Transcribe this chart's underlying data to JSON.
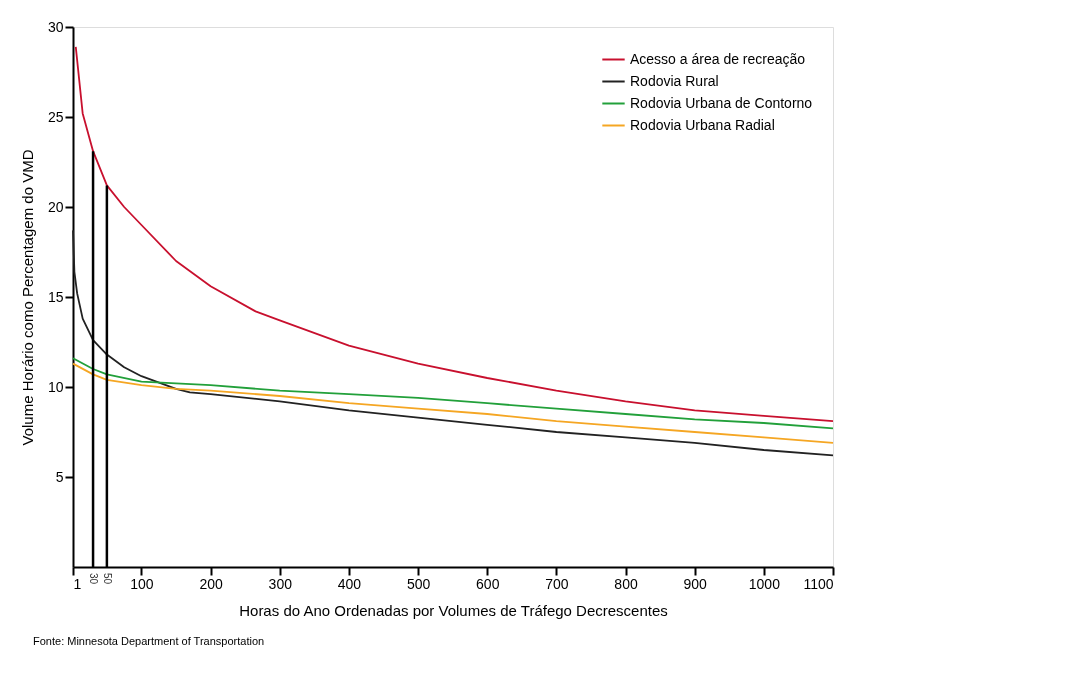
{
  "chart_data": {
    "type": "line",
    "xlabel": "Horas do Ano Ordenadas por Volumes de Tráfego Decrescentes",
    "ylabel": "Volume Horário como Percentagem do VMD",
    "xlim": [
      1,
      1100
    ],
    "xticks": [
      1,
      100,
      200,
      300,
      400,
      500,
      600,
      700,
      800,
      900,
      1000,
      1100
    ],
    "ylim": [
      0,
      30
    ],
    "yticks": [
      5,
      10,
      15,
      20,
      25,
      30
    ],
    "grid": false,
    "legend": "top right",
    "marker": "none",
    "line_style": "solid",
    "series": [
      {
        "name": "Acesso a área de recreação",
        "color": "#c8102e",
        "x": [
          5,
          15,
          30,
          50,
          75,
          100,
          150,
          200,
          265,
          300,
          400,
          500,
          600,
          700,
          800,
          900,
          1000,
          1100
        ],
        "values": [
          28.9,
          25.2,
          23.1,
          21.2,
          20.0,
          19.0,
          17.0,
          15.6,
          14.2,
          13.7,
          12.3,
          11.3,
          10.5,
          9.8,
          9.2,
          8.7,
          8.4,
          8.1
        ]
      },
      {
        "name": "Rodovia Rural",
        "color": "#222222",
        "x": [
          1,
          3,
          7,
          15,
          30,
          50,
          75,
          100,
          150,
          170,
          200,
          300,
          400,
          500,
          600,
          700,
          800,
          900,
          1000,
          1100
        ],
        "values": [
          18.7,
          16.4,
          15.2,
          13.8,
          12.6,
          11.8,
          11.1,
          10.6,
          9.9,
          9.7,
          9.6,
          9.2,
          8.7,
          8.3,
          7.9,
          7.5,
          7.2,
          6.9,
          6.5,
          6.2
        ]
      },
      {
        "name": "Rodovia Urbana de Contorno",
        "color": "#22a03a",
        "x": [
          1,
          30,
          50,
          100,
          200,
          300,
          400,
          500,
          600,
          700,
          800,
          900,
          1000,
          1100
        ],
        "values": [
          11.6,
          11.0,
          10.7,
          10.3,
          10.1,
          9.8,
          9.6,
          9.4,
          9.1,
          8.8,
          8.5,
          8.2,
          8.0,
          7.7
        ]
      },
      {
        "name": "Rodovia Urbana Radial",
        "color": "#f5a623",
        "x": [
          1,
          30,
          50,
          100,
          150,
          200,
          300,
          400,
          500,
          600,
          700,
          800,
          900,
          1000,
          1100
        ],
        "values": [
          11.3,
          10.7,
          10.4,
          10.1,
          9.9,
          9.8,
          9.5,
          9.1,
          8.8,
          8.5,
          8.1,
          7.8,
          7.5,
          7.2,
          6.9
        ]
      },
      {
        "color": "#000000",
        "x": [
          30,
          30
        ],
        "values": [
          0,
          23.1
        ]
      },
      {
        "color": "#000000",
        "x": [
          50,
          50
        ],
        "values": [
          0,
          21.2
        ]
      }
    ],
    "annotations": [
      {
        "text": "30",
        "x": 30,
        "y": 0
      },
      {
        "text": "50",
        "x": 50,
        "y": 0
      },
      "Fonte: Minnesota Department of Transportation"
    ]
  }
}
